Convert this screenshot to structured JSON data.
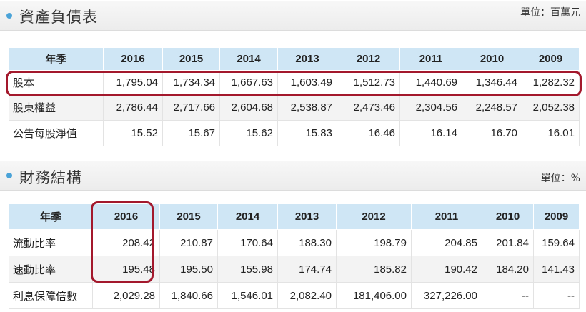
{
  "balance_sheet": {
    "title": "資產負債表",
    "unit": "單位：百萬元",
    "header_label": "年季",
    "years": [
      "2016",
      "2015",
      "2014",
      "2013",
      "2012",
      "2011",
      "2010",
      "2009"
    ],
    "rows": [
      {
        "label": "股本",
        "values": [
          "1,795.04",
          "1,734.34",
          "1,667.63",
          "1,603.49",
          "1,512.73",
          "1,440.69",
          "1,346.44",
          "1,282.32"
        ]
      },
      {
        "label": "股東權益",
        "values": [
          "2,786.44",
          "2,717.66",
          "2,604.68",
          "2,538.87",
          "2,473.46",
          "2,304.56",
          "2,248.57",
          "2,052.38"
        ]
      },
      {
        "label": "公告每股淨值",
        "values": [
          "15.52",
          "15.67",
          "15.62",
          "15.83",
          "16.46",
          "16.14",
          "16.70",
          "16.01"
        ]
      }
    ]
  },
  "financial_structure": {
    "title": "財務結構",
    "unit": "單位：%",
    "header_label": "年季",
    "years": [
      "2016",
      "2015",
      "2014",
      "2013",
      "2012",
      "2011",
      "2010",
      "2009"
    ],
    "rows": [
      {
        "label": "流動比率",
        "values": [
          "208.42",
          "210.87",
          "170.64",
          "188.30",
          "198.79",
          "204.85",
          "201.84",
          "159.64"
        ]
      },
      {
        "label": "速動比率",
        "values": [
          "195.48",
          "195.50",
          "155.98",
          "174.74",
          "185.82",
          "190.42",
          "184.20",
          "141.43"
        ]
      },
      {
        "label": "利息保障倍數",
        "values": [
          "2,029.28",
          "1,840.66",
          "1,546.01",
          "2,082.40",
          "181,406.00",
          "327,226.00",
          "--",
          "--"
        ]
      }
    ]
  },
  "colors": {
    "header_bg": "#cfe6f5",
    "highlight": "#a3182c",
    "bullet": "#4aa3d8"
  }
}
